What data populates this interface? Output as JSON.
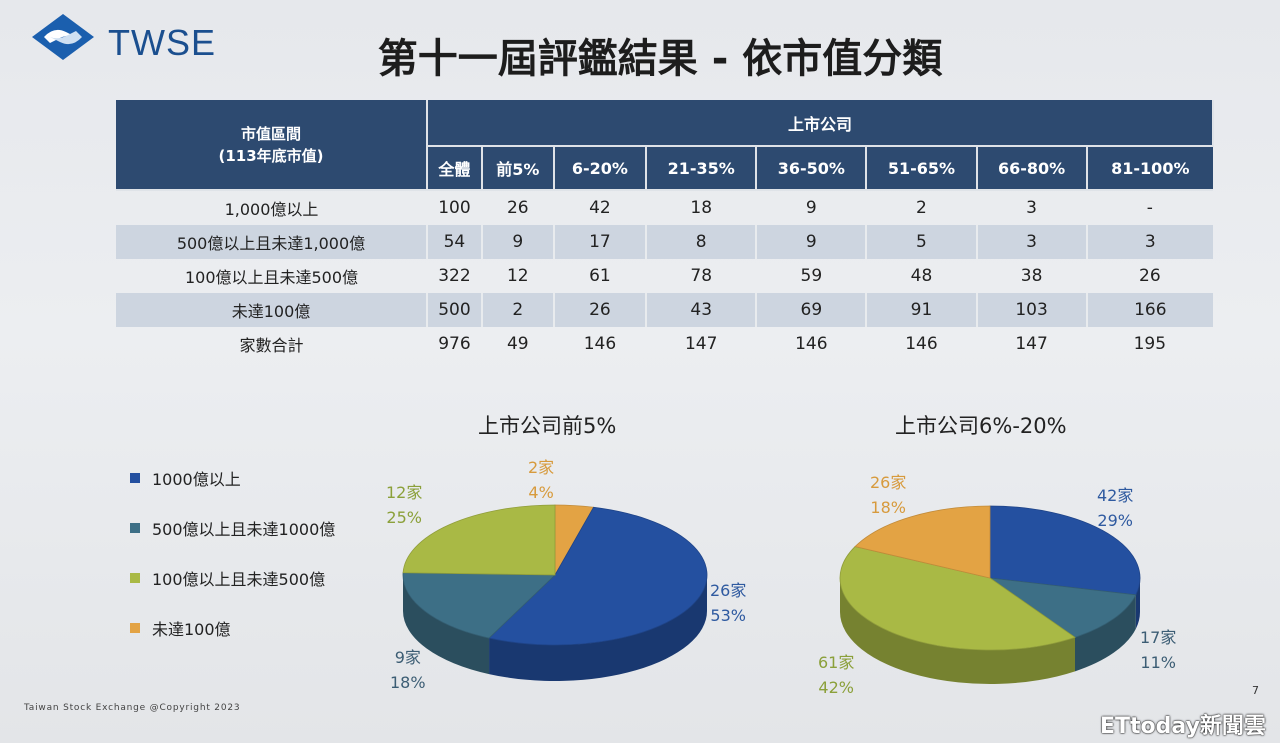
{
  "header": {
    "logo_text": "TWSE",
    "title": "第十一屆評鑑結果 - 依市值分類"
  },
  "table": {
    "range_header": [
      "市值區間",
      "(113年底市值)"
    ],
    "group_header": "上市公司",
    "columns": [
      "全體",
      "前5%",
      "6-20%",
      "21-35%",
      "36-50%",
      "51-65%",
      "66-80%",
      "81-100%"
    ],
    "rows": [
      {
        "label": "1,000億以上",
        "values": [
          "100",
          "26",
          "42",
          "18",
          "9",
          "2",
          "3",
          "-"
        ]
      },
      {
        "label": "500億以上且未達1,000億",
        "values": [
          "54",
          "9",
          "17",
          "8",
          "9",
          "5",
          "3",
          "3"
        ]
      },
      {
        "label": "100億以上且未達500億",
        "values": [
          "322",
          "12",
          "61",
          "78",
          "59",
          "48",
          "38",
          "26"
        ]
      },
      {
        "label": "未達100億",
        "values": [
          "500",
          "2",
          "26",
          "43",
          "69",
          "91",
          "103",
          "166"
        ]
      },
      {
        "label": "家數合計",
        "values": [
          "976",
          "49",
          "146",
          "147",
          "146",
          "146",
          "147",
          "195"
        ]
      }
    ]
  },
  "legend": [
    {
      "label": "1000億以上",
      "color": "#2450a0"
    },
    {
      "label": "500億以上且未達1000億",
      "color": "#3d6f86"
    },
    {
      "label": "100億以上且未達500億",
      "color": "#a9b945"
    },
    {
      "label": "未達100億",
      "color": "#e3a344"
    }
  ],
  "chart_data": [
    {
      "type": "pie",
      "title": "上市公司前5%",
      "categories": [
        "1000億以上",
        "500億以上且未達1000億",
        "100億以上且未達500億",
        "未達100億"
      ],
      "values": [
        26,
        9,
        12,
        2
      ],
      "counts": [
        "26家",
        "9家",
        "12家",
        "2家"
      ],
      "percents": [
        "53%",
        "18%",
        "25%",
        "4%"
      ]
    },
    {
      "type": "pie",
      "title": "上市公司6%-20%",
      "categories": [
        "1000億以上",
        "500億以上且未達1000億",
        "100億以上且未達500億",
        "未達100億"
      ],
      "values": [
        42,
        17,
        61,
        26
      ],
      "counts": [
        "42家",
        "17家",
        "61家",
        "26家"
      ],
      "percents": [
        "29%",
        "11%",
        "42%",
        "18%"
      ]
    }
  ],
  "footer": {
    "copyright": "Taiwan Stock Exchange @Copyright 2023",
    "page": "7",
    "watermark": "ETtoday新聞雲"
  }
}
